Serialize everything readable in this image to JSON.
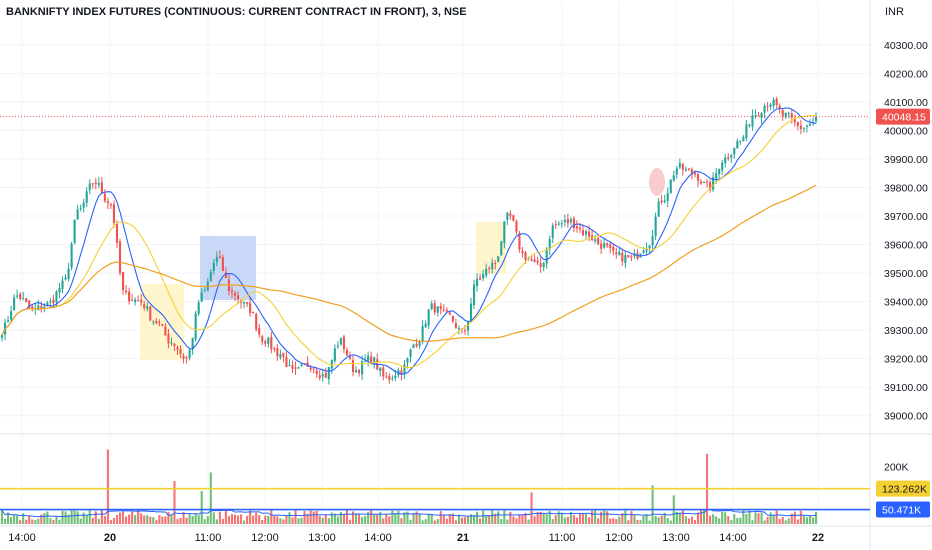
{
  "header": {
    "title": "BANKNIFTY INDEX FUTURES (CONTINUOUS: CURRENT CONTRACT IN FRONT), 3, NSE",
    "currency": "INR"
  },
  "colors": {
    "up": "#26a69a",
    "down": "#ef5350",
    "ma_fast": "#2962ff",
    "ma_mid": "#f5d033",
    "ma_slow": "#f0a020",
    "vol_up": "#4caf50",
    "vol_down": "#ef5350",
    "highlight_yellow": "#fff3c4",
    "highlight_blue": "#b3c8f5",
    "highlight_red": "#f7c6c6"
  },
  "chart_data": [
    {
      "type": "candlestick",
      "yaxis": {
        "min": 38950,
        "max": 40380,
        "ticks": [
          "40300.00",
          "40200.00",
          "40100.00",
          "40000.00",
          "39900.00",
          "39800.00",
          "39700.00",
          "39600.00",
          "39500.00",
          "39400.00",
          "39300.00",
          "39200.00",
          "39100.00",
          "39000.00"
        ]
      },
      "xaxis": {
        "labels": [
          {
            "text": "14:00",
            "bold": false
          },
          {
            "text": "20",
            "bold": true
          },
          {
            "text": "11:00",
            "bold": false
          },
          {
            "text": "12:00",
            "bold": false
          },
          {
            "text": "13:00",
            "bold": false
          },
          {
            "text": "14:00",
            "bold": false
          },
          {
            "text": "21",
            "bold": true
          },
          {
            "text": "11:00",
            "bold": false
          },
          {
            "text": "12:00",
            "bold": false
          },
          {
            "text": "13:00",
            "bold": false
          },
          {
            "text": "14:00",
            "bold": false
          },
          {
            "text": "22",
            "bold": true
          }
        ]
      },
      "anchors": [
        39300,
        39420,
        39370,
        39390,
        39460,
        39720,
        39820,
        39750,
        39420,
        39400,
        39330,
        39260,
        39200,
        39420,
        39550,
        39430,
        39380,
        39270,
        39220,
        39150,
        39180,
        39140,
        39260,
        39160,
        39200,
        39130,
        39160,
        39260,
        39380,
        39350,
        39290,
        39480,
        39530,
        39700,
        39560,
        39520,
        39670,
        39680,
        39640,
        39600,
        39560,
        39550,
        39600,
        39760,
        39870,
        39850,
        39800,
        39900,
        39960,
        40060,
        40100,
        40050,
        40010,
        40030
      ],
      "last_price": "40048.15",
      "last_value": 40048.15,
      "series": [
        {
          "name": "",
          "kind": "fast-ma"
        },
        {
          "name": "",
          "kind": "medium-ma"
        },
        {
          "name": "",
          "kind": "slow-ma"
        }
      ]
    },
    {
      "type": "bar",
      "name": "",
      "yaxis": {
        "min": 0,
        "max": 300000,
        "ticks": [
          "200K"
        ]
      },
      "levels": [
        {
          "label": "123.262K",
          "value": 123262,
          "color": "#f5d033"
        },
        {
          "label": "50.471K",
          "value": 50471,
          "color": "#2962ff"
        }
      ],
      "spikes": [
        {
          "candle": 35,
          "value": 260000
        },
        {
          "candle": 57,
          "value": 150000
        },
        {
          "candle": 69,
          "value": 180000
        },
        {
          "candle": 66,
          "value": 115000
        },
        {
          "candle": 175,
          "value": 110000
        },
        {
          "candle": 215,
          "value": 135000
        },
        {
          "candle": 233,
          "value": 245000
        },
        {
          "candle": 222,
          "value": 100000
        }
      ]
    }
  ]
}
